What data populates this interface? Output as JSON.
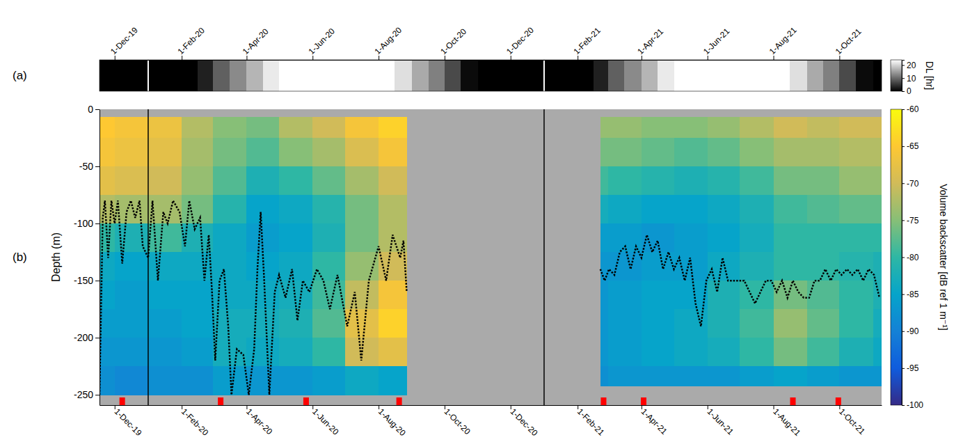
{
  "chart_data": [
    {
      "type": "heatmap",
      "label": "(a)",
      "tick_labels": "x",
      "xlim": [
        "2019-11-17",
        "2021-11-09"
      ],
      "xticks": [
        {
          "value": "2019-12-01",
          "label": "1-Dec-19"
        },
        {
          "value": "2020-02-01",
          "label": "1-Feb-20"
        },
        {
          "value": "2020-04-01",
          "label": "1-Apr-20"
        },
        {
          "value": "2020-06-01",
          "label": "1-Jun-20"
        },
        {
          "value": "2020-08-01",
          "label": "1-Aug-20"
        },
        {
          "value": "2020-10-01",
          "label": "1-Oct-20"
        },
        {
          "value": "2020-12-01",
          "label": "1-Dec-20"
        },
        {
          "value": "2021-02-01",
          "label": "1-Feb-21"
        },
        {
          "value": "2021-04-01",
          "label": "1-Apr-21"
        },
        {
          "value": "2021-06-01",
          "label": "1-Jun-21"
        },
        {
          "value": "2021-08-01",
          "label": "1-Aug-21"
        },
        {
          "value": "2021-10-01",
          "label": "1-Oct-21"
        }
      ],
      "strip": {
        "time_edges": [
          "2019-11-17",
          "2020-02-16",
          "2020-03-01",
          "2020-03-16",
          "2020-04-01",
          "2020-04-16",
          "2020-05-01",
          "2020-08-16",
          "2020-09-01",
          "2020-09-16",
          "2020-10-01",
          "2020-10-16",
          "2020-11-01",
          "2021-02-16",
          "2021-03-01",
          "2021-03-16",
          "2021-04-01",
          "2021-04-16",
          "2021-05-01",
          "2021-08-16",
          "2021-09-01",
          "2021-09-16",
          "2021-10-01",
          "2021-10-16",
          "2021-11-01",
          "2021-11-09"
        ],
        "values": [
          0,
          3,
          9,
          13,
          17,
          22,
          24,
          21,
          16,
          12,
          7,
          1,
          0,
          3,
          9,
          13,
          17,
          22,
          24,
          21,
          16,
          12,
          7,
          1,
          0
        ]
      },
      "colorbar": {
        "label": "DL [hr]",
        "range": [
          0,
          24
        ],
        "ticks": [
          0,
          10,
          20
        ]
      },
      "vlines": {
        "x": [
          "2020-01-01",
          "2021-01-01"
        ],
        "color": "#ffffff"
      }
    },
    {
      "type": "heatmap",
      "label": "(b)",
      "ylabel": "Depth (m)",
      "xlim": [
        "2019-11-17",
        "2021-11-09"
      ],
      "xticks": [
        {
          "value": "2019-12-01",
          "label": "1-Dec-19"
        },
        {
          "value": "2020-02-01",
          "label": "1-Feb-20"
        },
        {
          "value": "2020-04-01",
          "label": "1-Apr-20"
        },
        {
          "value": "2020-06-01",
          "label": "1-Jun-20"
        },
        {
          "value": "2020-08-01",
          "label": "1-Aug-20"
        },
        {
          "value": "2020-10-01",
          "label": "1-Oct-20"
        },
        {
          "value": "2020-12-01",
          "label": "1-Dec-20"
        },
        {
          "value": "2021-02-01",
          "label": "1-Feb-21"
        },
        {
          "value": "2021-04-01",
          "label": "1-Apr-21"
        },
        {
          "value": "2021-06-01",
          "label": "1-Jun-21"
        },
        {
          "value": "2021-08-01",
          "label": "1-Aug-21"
        },
        {
          "value": "2021-10-01",
          "label": "1-Oct-21"
        }
      ],
      "ylim": [
        -259,
        0
      ],
      "yticks": [
        0,
        -50,
        -100,
        -150,
        -200,
        -250
      ],
      "panels": [
        {
          "time_edges": [
            "2019-11-17",
            "2019-12-01",
            "2020-01-01",
            "2020-02-01",
            "2020-03-01",
            "2020-04-01",
            "2020-05-01",
            "2020-06-01",
            "2020-07-01",
            "2020-08-01",
            "2020-08-27"
          ],
          "depth_edges": [
            -7,
            -25,
            -50,
            -75,
            -100,
            -125,
            -150,
            -175,
            -200,
            -225,
            -250
          ],
          "values": [
            [
              -65,
              -66,
              -68,
              -72,
              -80,
              -84,
              -85,
              -86,
              -87,
              -88
            ],
            [
              -66,
              -67,
              -69,
              -73,
              -82,
              -85,
              -86,
              -86,
              -87,
              -89
            ],
            [
              -67,
              -68,
              -70,
              -73,
              -79,
              -84,
              -85,
              -86,
              -87,
              -88
            ],
            [
              -72,
              -73,
              -74,
              -76,
              -82,
              -84,
              -85,
              -85,
              -86,
              -88
            ],
            [
              -75,
              -76,
              -78,
              -81,
              -84,
              -84,
              -84,
              -83,
              -83,
              -86
            ],
            [
              -76,
              -78,
              -82,
              -85,
              -86,
              -85,
              -84,
              -83,
              -84,
              -87
            ],
            [
              -72,
              -75,
              -80,
              -84,
              -85,
              -84,
              -83,
              -82,
              -83,
              -87
            ],
            [
              -70,
              -73,
              -77,
              -81,
              -82,
              -80,
              -79,
              -78,
              -80,
              -86
            ],
            [
              -66,
              -69,
              -73,
              -76,
              -76,
              -74,
              -71,
              -68,
              -70,
              -84
            ],
            [
              -64,
              -66,
              -70,
              -72,
              -72,
              -70,
              -66,
              -64,
              -68,
              -85
            ]
          ]
        },
        {
          "time_edges": [
            "2021-02-22",
            "2021-03-01",
            "2021-04-01",
            "2021-05-01",
            "2021-06-01",
            "2021-07-01",
            "2021-08-01",
            "2021-09-01",
            "2021-10-01",
            "2021-11-01",
            "2021-11-09"
          ],
          "depth_edges": [
            -7,
            -25,
            -50,
            -75,
            -100,
            -125,
            -150,
            -175,
            -200,
            -225,
            -242
          ],
          "values": [
            [
              -74,
              -76,
              -79,
              -83,
              -86,
              -87,
              -87,
              -87,
              -87,
              -88
            ],
            [
              -74,
              -76,
              -80,
              -84,
              -86,
              -87,
              -86,
              -86,
              -86,
              -87
            ],
            [
              -75,
              -77,
              -81,
              -85,
              -87,
              -86,
              -85,
              -85,
              -85,
              -87
            ],
            [
              -75,
              -78,
              -82,
              -85,
              -86,
              -86,
              -85,
              -84,
              -84,
              -87
            ],
            [
              -74,
              -77,
              -81,
              -84,
              -85,
              -84,
              -82,
              -82,
              -83,
              -87
            ],
            [
              -72,
              -75,
              -79,
              -82,
              -83,
              -82,
              -80,
              -79,
              -80,
              -86
            ],
            [
              -70,
              -73,
              -76,
              -79,
              -80,
              -80,
              -76,
              -74,
              -76,
              -85
            ],
            [
              -71,
              -73,
              -76,
              -78,
              -80,
              -80,
              -78,
              -77,
              -79,
              -86
            ],
            [
              -70,
              -72,
              -74,
              -77,
              -80,
              -81,
              -80,
              -80,
              -82,
              -87
            ],
            [
              -70,
              -72,
              -74,
              -77,
              -80,
              -82,
              -82,
              -83,
              -84,
              -87
            ]
          ]
        }
      ],
      "colorbar": {
        "label": "Volume backscatter [dB ref 1 m⁻¹]",
        "range": [
          -100,
          -60
        ],
        "ticks": [
          -60,
          -65,
          -70,
          -75,
          -80,
          -85,
          -90,
          -95,
          -100
        ]
      },
      "series": [
        {
          "color": "#000000",
          "line_style": "dotted",
          "x": [
            "2019-11-17",
            "2019-11-20",
            "2019-11-22",
            "2019-11-25",
            "2019-11-28",
            "2019-12-01",
            "2019-12-04",
            "2019-12-08",
            "2019-12-12",
            "2019-12-16",
            "2019-12-20",
            "2019-12-24",
            "2019-12-27",
            "2020-01-01",
            "2020-01-05",
            "2020-01-10",
            "2020-01-15",
            "2020-01-19",
            "2020-01-24",
            "2020-01-30",
            "2020-02-04",
            "2020-02-08",
            "2020-02-13",
            "2020-02-18",
            "2020-02-22",
            "2020-02-26",
            "2020-02-29",
            "2020-03-03",
            "2020-03-07",
            "2020-03-11",
            "2020-03-15",
            "2020-03-18",
            "2020-03-23",
            "2020-03-29",
            "2020-04-03",
            "2020-04-08",
            "2020-04-11",
            "2020-04-14",
            "2020-04-17",
            "2020-04-22",
            "2020-04-27",
            "2020-05-01",
            "2020-05-07",
            "2020-05-13",
            "2020-05-18",
            "2020-05-23",
            "2020-05-29",
            "2020-06-05",
            "2020-06-11",
            "2020-06-17",
            "2020-06-24",
            "2020-07-03",
            "2020-07-10",
            "2020-07-16",
            "2020-07-23",
            "2020-08-01",
            "2020-08-08",
            "2020-08-14",
            "2020-08-21",
            "2020-08-24",
            "2020-08-27"
          ],
          "values": [
            -250,
            -95,
            -80,
            -130,
            -80,
            -100,
            -80,
            -135,
            -90,
            -80,
            -95,
            -80,
            -120,
            -130,
            -80,
            -150,
            -90,
            -100,
            -80,
            -90,
            -120,
            -80,
            -105,
            -95,
            -150,
            -110,
            -160,
            -220,
            -150,
            -140,
            -190,
            -250,
            -210,
            -215,
            -250,
            -210,
            -140,
            -90,
            -145,
            -250,
            -160,
            -145,
            -165,
            -140,
            -185,
            -150,
            -160,
            -140,
            -150,
            -175,
            -145,
            -190,
            -160,
            -220,
            -150,
            -120,
            -150,
            -110,
            -130,
            -115,
            -160
          ]
        },
        {
          "color": "#000000",
          "line_style": "dotted",
          "x": [
            "2021-02-22",
            "2021-02-26",
            "2021-03-02",
            "2021-03-07",
            "2021-03-12",
            "2021-03-17",
            "2021-03-22",
            "2021-03-27",
            "2021-04-01",
            "2021-04-06",
            "2021-04-11",
            "2021-04-16",
            "2021-04-21",
            "2021-04-26",
            "2021-05-01",
            "2021-05-06",
            "2021-05-11",
            "2021-05-16",
            "2021-05-21",
            "2021-05-26",
            "2021-05-31",
            "2021-06-05",
            "2021-06-10",
            "2021-06-15",
            "2021-06-20",
            "2021-06-25",
            "2021-06-30",
            "2021-07-05",
            "2021-07-10",
            "2021-07-15",
            "2021-07-20",
            "2021-07-25",
            "2021-07-30",
            "2021-08-04",
            "2021-08-09",
            "2021-08-14",
            "2021-08-19",
            "2021-08-24",
            "2021-08-29",
            "2021-09-03",
            "2021-09-08",
            "2021-09-13",
            "2021-09-18",
            "2021-09-23",
            "2021-09-28",
            "2021-10-03",
            "2021-10-08",
            "2021-10-13",
            "2021-10-18",
            "2021-10-23",
            "2021-10-28",
            "2021-11-02",
            "2021-11-07"
          ],
          "values": [
            -140,
            -150,
            -140,
            -145,
            -125,
            -120,
            -140,
            -120,
            -130,
            -110,
            -125,
            -115,
            -140,
            -125,
            -140,
            -130,
            -150,
            -130,
            -170,
            -190,
            -150,
            -140,
            -160,
            -130,
            -150,
            -150,
            -150,
            -150,
            -160,
            -170,
            -160,
            -150,
            -150,
            -160,
            -150,
            -165,
            -150,
            -160,
            -165,
            -165,
            -150,
            -150,
            -140,
            -150,
            -140,
            -145,
            -140,
            -145,
            -140,
            -150,
            -140,
            -145,
            -165
          ]
        }
      ],
      "vlines": {
        "x": [
          "2020-01-01",
          "2021-01-01"
        ],
        "color": "#000000"
      },
      "events": {
        "x": [
          "2019-12-08",
          "2020-03-08",
          "2020-05-26",
          "2020-08-20",
          "2021-02-25",
          "2021-04-03",
          "2021-08-19",
          "2021-09-30"
        ],
        "color": "#ff0000"
      }
    }
  ]
}
